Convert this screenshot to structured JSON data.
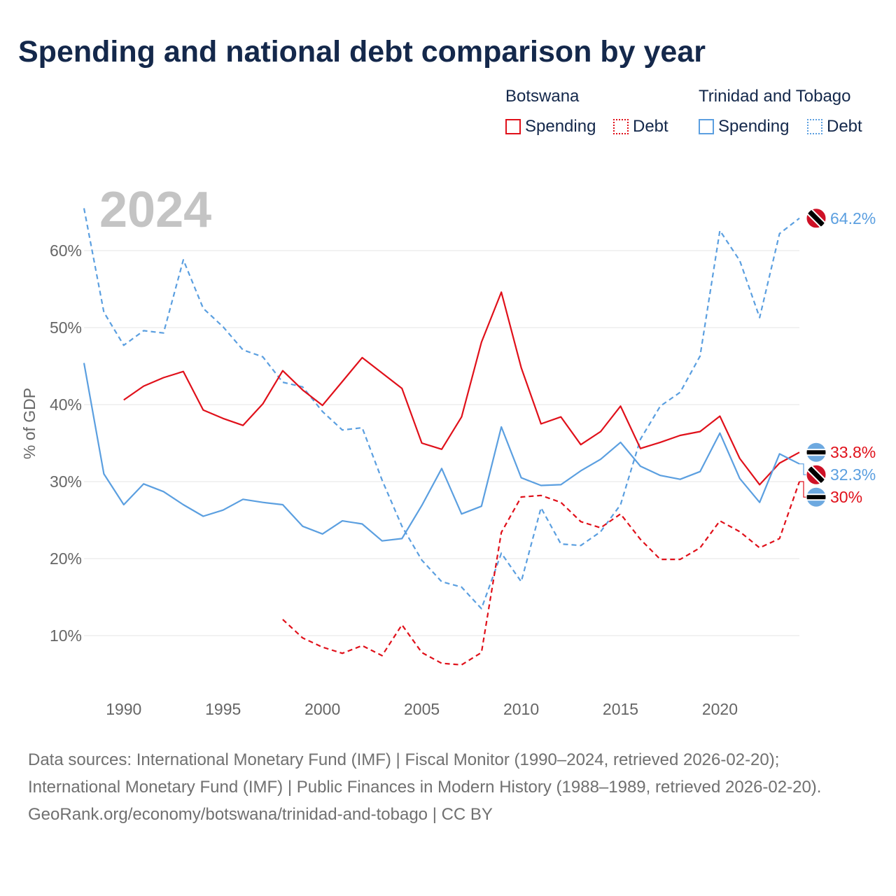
{
  "title": "Spending and national debt comparison by year",
  "legend": {
    "groups": [
      {
        "country": "Botswana",
        "color": "#e0101a",
        "items": [
          "Spending",
          "Debt"
        ]
      },
      {
        "country": "Trinidad and Tobago",
        "color": "#5b9fe0",
        "items": [
          "Spending",
          "Debt"
        ]
      }
    ]
  },
  "footer": {
    "sources": "Data sources: International Monetary Fund (IMF) | Fiscal Monitor (1990–2024, retrieved 2026-02-20); International Monetary Fund (IMF) | Public Finances in Modern History (1988–1989, retrieved 2026-02-20).",
    "attribution": "GeoRank.org/economy/botswana/trinidad-and-tobago | CC BY"
  },
  "chart_data": {
    "type": "line",
    "title": "Spending and national debt comparison by year",
    "year_label": "2024",
    "ylabel": "% of GDP",
    "xlabel": "",
    "xlim": [
      1988,
      2024
    ],
    "ylim": [
      3,
      68
    ],
    "x_ticks": [
      1990,
      1995,
      2000,
      2005,
      2010,
      2015,
      2020
    ],
    "y_ticks": [
      {
        "value": 10,
        "label": "10%"
      },
      {
        "value": 20,
        "label": "20%"
      },
      {
        "value": 30,
        "label": "30%"
      },
      {
        "value": 40,
        "label": "40%"
      },
      {
        "value": 50,
        "label": "50%"
      },
      {
        "value": 60,
        "label": "60%"
      }
    ],
    "series": [
      {
        "name": "Trinidad and Tobago Debt",
        "country": "Trinidad and Tobago",
        "metric": "Debt",
        "color": "#5b9fe0",
        "dash": "dashed",
        "end_label": "64.2%",
        "flag": "trinidad",
        "points": [
          [
            1988,
            65.5
          ],
          [
            1989,
            52
          ],
          [
            1990,
            47.7
          ],
          [
            1991,
            49.6
          ],
          [
            1992,
            49.3
          ],
          [
            1993,
            58.8
          ],
          [
            1994,
            52.5
          ],
          [
            1995,
            50.1
          ],
          [
            1996,
            47.1
          ],
          [
            1997,
            46.2
          ],
          [
            1998,
            42.9
          ],
          [
            1999,
            42.3
          ],
          [
            2000,
            39.1
          ],
          [
            2001,
            36.7
          ],
          [
            2002,
            37
          ],
          [
            2003,
            30.2
          ],
          [
            2004,
            24.2
          ],
          [
            2005,
            19.8
          ],
          [
            2006,
            17
          ],
          [
            2007,
            16.3
          ],
          [
            2008,
            13.5
          ],
          [
            2009,
            20.7
          ],
          [
            2010,
            17
          ],
          [
            2011,
            26.6
          ],
          [
            2012,
            21.9
          ],
          [
            2013,
            21.7
          ],
          [
            2014,
            23.5
          ],
          [
            2015,
            27
          ],
          [
            2016,
            35.5
          ],
          [
            2017,
            39.8
          ],
          [
            2018,
            41.6
          ],
          [
            2019,
            46.3
          ],
          [
            2020,
            62.6
          ],
          [
            2021,
            58.7
          ],
          [
            2022,
            51.3
          ],
          [
            2023,
            62.2
          ],
          [
            2024,
            64.2
          ]
        ]
      },
      {
        "name": "Botswana Spending",
        "country": "Botswana",
        "metric": "Spending",
        "color": "#e0101a",
        "dash": "solid",
        "end_label": "33.8%",
        "flag": "botswana",
        "points": [
          [
            1990,
            40.6
          ],
          [
            1991,
            42.4
          ],
          [
            1992,
            43.5
          ],
          [
            1993,
            44.3
          ],
          [
            1994,
            39.3
          ],
          [
            1995,
            38.2
          ],
          [
            1996,
            37.3
          ],
          [
            1997,
            40.1
          ],
          [
            1998,
            44.4
          ],
          [
            1999,
            41.9
          ],
          [
            2000,
            39.9
          ],
          [
            2001,
            43
          ],
          [
            2002,
            46.1
          ],
          [
            2003,
            44.1
          ],
          [
            2004,
            42.1
          ],
          [
            2005,
            35
          ],
          [
            2006,
            34.2
          ],
          [
            2007,
            38.4
          ],
          [
            2008,
            48.1
          ],
          [
            2009,
            54.6
          ],
          [
            2010,
            44.8
          ],
          [
            2011,
            37.5
          ],
          [
            2012,
            38.4
          ],
          [
            2013,
            34.8
          ],
          [
            2014,
            36.5
          ],
          [
            2015,
            39.8
          ],
          [
            2016,
            34.3
          ],
          [
            2017,
            35.1
          ],
          [
            2018,
            36
          ],
          [
            2019,
            36.5
          ],
          [
            2020,
            38.5
          ],
          [
            2021,
            33
          ],
          [
            2022,
            29.6
          ],
          [
            2023,
            32.4
          ],
          [
            2024,
            33.8
          ]
        ]
      },
      {
        "name": "Trinidad and Tobago Spending",
        "country": "Trinidad and Tobago",
        "metric": "Spending",
        "color": "#5b9fe0",
        "dash": "solid",
        "end_label": "32.3%",
        "flag": "trinidad",
        "points": [
          [
            1988,
            45.4
          ],
          [
            1989,
            31
          ],
          [
            1990,
            27
          ],
          [
            1991,
            29.7
          ],
          [
            1992,
            28.7
          ],
          [
            1993,
            27
          ],
          [
            1994,
            25.5
          ],
          [
            1995,
            26.3
          ],
          [
            1996,
            27.7
          ],
          [
            1997,
            27.3
          ],
          [
            1998,
            27
          ],
          [
            1999,
            24.2
          ],
          [
            2000,
            23.2
          ],
          [
            2001,
            24.9
          ],
          [
            2002,
            24.5
          ],
          [
            2003,
            22.3
          ],
          [
            2004,
            22.6
          ],
          [
            2005,
            26.9
          ],
          [
            2006,
            31.7
          ],
          [
            2007,
            25.8
          ],
          [
            2008,
            26.8
          ],
          [
            2009,
            37.1
          ],
          [
            2010,
            30.5
          ],
          [
            2011,
            29.5
          ],
          [
            2012,
            29.6
          ],
          [
            2013,
            31.4
          ],
          [
            2014,
            32.9
          ],
          [
            2015,
            35.1
          ],
          [
            2016,
            32
          ],
          [
            2017,
            30.8
          ],
          [
            2018,
            30.3
          ],
          [
            2019,
            31.3
          ],
          [
            2020,
            36.3
          ],
          [
            2021,
            30.4
          ],
          [
            2022,
            27.3
          ],
          [
            2023,
            33.6
          ],
          [
            2024,
            32.3
          ]
        ]
      },
      {
        "name": "Botswana Debt",
        "country": "Botswana",
        "metric": "Debt",
        "color": "#e0101a",
        "dash": "dashed",
        "end_label": "30%",
        "flag": "botswana",
        "points": [
          [
            1998,
            12.1
          ],
          [
            1999,
            9.7
          ],
          [
            2000,
            8.5
          ],
          [
            2001,
            7.7
          ],
          [
            2002,
            8.7
          ],
          [
            2003,
            7.4
          ],
          [
            2004,
            11.4
          ],
          [
            2005,
            7.8
          ],
          [
            2006,
            6.4
          ],
          [
            2007,
            6.2
          ],
          [
            2008,
            7.8
          ],
          [
            2009,
            23.4
          ],
          [
            2010,
            28
          ],
          [
            2011,
            28.2
          ],
          [
            2012,
            27.3
          ],
          [
            2013,
            24.8
          ],
          [
            2014,
            24
          ],
          [
            2015,
            25.8
          ],
          [
            2016,
            22.5
          ],
          [
            2017,
            19.9
          ],
          [
            2018,
            19.9
          ],
          [
            2019,
            21.4
          ],
          [
            2020,
            24.9
          ],
          [
            2021,
            23.5
          ],
          [
            2022,
            21.4
          ],
          [
            2023,
            22.6
          ],
          [
            2024,
            30
          ]
        ]
      }
    ]
  }
}
